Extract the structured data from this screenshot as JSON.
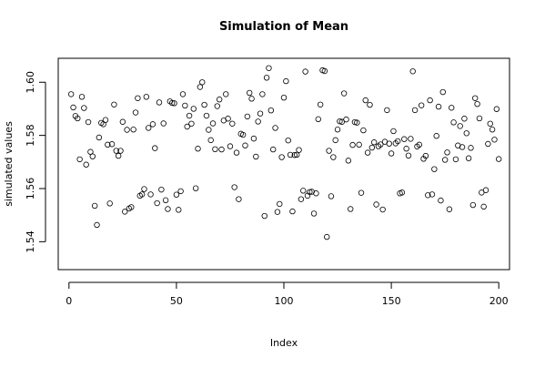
{
  "chart_data": {
    "type": "scatter",
    "title": "Simulation of Mean",
    "xlabel": "Index",
    "ylabel": "simulated values",
    "xlim": [
      -5,
      205
    ],
    "ylim": [
      1.5295,
      1.609
    ],
    "x_ticks": [
      0,
      50,
      100,
      150,
      200
    ],
    "y_ticks": [
      1.54,
      1.56,
      1.58,
      1.6
    ],
    "x_tick_labels": [
      "0",
      "50",
      "100",
      "150",
      "200"
    ],
    "y_tick_labels": [
      "1.54",
      "1.56",
      "1.58",
      "1.60"
    ],
    "grid": false,
    "marker": "open-circle",
    "series": [
      {
        "values": [
          1.5955,
          1.5905,
          1.5873,
          1.5864,
          1.571,
          1.5945,
          1.5903,
          1.569,
          1.585,
          1.5738,
          1.5721,
          1.5535,
          1.5463,
          1.5792,
          1.5847,
          1.5842,
          1.5858,
          1.5765,
          1.5544,
          1.5767,
          1.5916,
          1.5742,
          1.5723,
          1.5742,
          1.5851,
          1.5513,
          1.5821,
          1.5525,
          1.553,
          1.5822,
          1.5886,
          1.594,
          1.5573,
          1.5578,
          1.5598,
          1.5945,
          1.5828,
          1.5578,
          1.5842,
          1.5752,
          1.5545,
          1.5924,
          1.5596,
          1.5845,
          1.5556,
          1.5523,
          1.5928,
          1.5922,
          1.5921,
          1.5577,
          1.552,
          1.559,
          1.5955,
          1.5912,
          1.5833,
          1.5874,
          1.5844,
          1.59,
          1.5601,
          1.575,
          1.5982,
          1.6,
          1.5915,
          1.5874,
          1.5821,
          1.5782,
          1.5845,
          1.5748,
          1.591,
          1.5935,
          1.5747,
          1.5856,
          1.5955,
          1.5863,
          1.5759,
          1.5844,
          1.5605,
          1.5735,
          1.556,
          1.5806,
          1.5802,
          1.5762,
          1.5871,
          1.596,
          1.5938,
          1.5788,
          1.572,
          1.5852,
          1.5882,
          1.5955,
          1.5497,
          1.6017,
          1.6053,
          1.5894,
          1.5747,
          1.5828,
          1.5512,
          1.5542,
          1.5718,
          1.5942,
          1.6004,
          1.5781,
          1.5727,
          1.5514,
          1.5726,
          1.5727,
          1.5745,
          1.556,
          1.5592,
          1.604,
          1.5573,
          1.5587,
          1.5588,
          1.5506,
          1.5582,
          1.5861,
          1.5916,
          1.6045,
          1.6042,
          1.5418,
          1.5742,
          1.5571,
          1.5718,
          1.5782,
          1.5822,
          1.5853,
          1.5851,
          1.5958,
          1.586,
          1.5705,
          1.5523,
          1.5764,
          1.585,
          1.5848,
          1.5765,
          1.5584,
          1.5819,
          1.5932,
          1.5735,
          1.5915,
          1.5754,
          1.5774,
          1.554,
          1.5759,
          1.5766,
          1.5521,
          1.5776,
          1.5895,
          1.5769,
          1.5732,
          1.5816,
          1.577,
          1.5778,
          1.5582,
          1.5585,
          1.5786,
          1.575,
          1.5724,
          1.5787,
          1.6041,
          1.5895,
          1.5758,
          1.5765,
          1.5913,
          1.5712,
          1.5723,
          1.5575,
          1.5932,
          1.5578,
          1.5673,
          1.5798,
          1.5908,
          1.5555,
          1.5963,
          1.5708,
          1.5736,
          1.5522,
          1.5904,
          1.5849,
          1.571,
          1.5762,
          1.5835,
          1.5756,
          1.5863,
          1.5808,
          1.5714,
          1.5753,
          1.5538,
          1.594,
          1.5918,
          1.5864,
          1.5585,
          1.5532,
          1.5594,
          1.5768,
          1.5844,
          1.5822,
          1.5784,
          1.5899,
          1.5711
        ]
      }
    ],
    "outlier_note": null
  }
}
